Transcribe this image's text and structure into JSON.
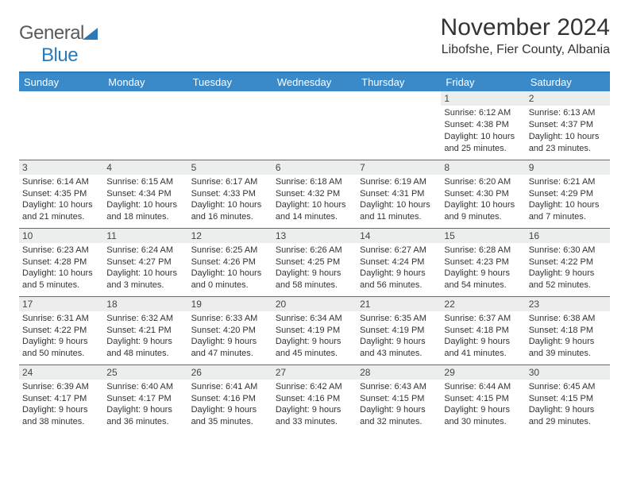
{
  "brand": {
    "name1": "General",
    "name2": "Blue"
  },
  "title": "November 2024",
  "location": "Libofshe, Fier County, Albania",
  "colors": {
    "header_bg": "#3a8ac9",
    "header_text": "#ffffff",
    "rule": "#2a7ab9",
    "daynum_bg": "#eceeee",
    "text": "#333333",
    "logo_blue": "#2a7ab9",
    "logo_gray": "#5a5a5a",
    "background": "#ffffff"
  },
  "weekdays": [
    "Sunday",
    "Monday",
    "Tuesday",
    "Wednesday",
    "Thursday",
    "Friday",
    "Saturday"
  ],
  "weeks": [
    [
      null,
      null,
      null,
      null,
      null,
      {
        "n": "1",
        "sunrise": "Sunrise: 6:12 AM",
        "sunset": "Sunset: 4:38 PM",
        "daylight": "Daylight: 10 hours and 25 minutes."
      },
      {
        "n": "2",
        "sunrise": "Sunrise: 6:13 AM",
        "sunset": "Sunset: 4:37 PM",
        "daylight": "Daylight: 10 hours and 23 minutes."
      }
    ],
    [
      {
        "n": "3",
        "sunrise": "Sunrise: 6:14 AM",
        "sunset": "Sunset: 4:35 PM",
        "daylight": "Daylight: 10 hours and 21 minutes."
      },
      {
        "n": "4",
        "sunrise": "Sunrise: 6:15 AM",
        "sunset": "Sunset: 4:34 PM",
        "daylight": "Daylight: 10 hours and 18 minutes."
      },
      {
        "n": "5",
        "sunrise": "Sunrise: 6:17 AM",
        "sunset": "Sunset: 4:33 PM",
        "daylight": "Daylight: 10 hours and 16 minutes."
      },
      {
        "n": "6",
        "sunrise": "Sunrise: 6:18 AM",
        "sunset": "Sunset: 4:32 PM",
        "daylight": "Daylight: 10 hours and 14 minutes."
      },
      {
        "n": "7",
        "sunrise": "Sunrise: 6:19 AM",
        "sunset": "Sunset: 4:31 PM",
        "daylight": "Daylight: 10 hours and 11 minutes."
      },
      {
        "n": "8",
        "sunrise": "Sunrise: 6:20 AM",
        "sunset": "Sunset: 4:30 PM",
        "daylight": "Daylight: 10 hours and 9 minutes."
      },
      {
        "n": "9",
        "sunrise": "Sunrise: 6:21 AM",
        "sunset": "Sunset: 4:29 PM",
        "daylight": "Daylight: 10 hours and 7 minutes."
      }
    ],
    [
      {
        "n": "10",
        "sunrise": "Sunrise: 6:23 AM",
        "sunset": "Sunset: 4:28 PM",
        "daylight": "Daylight: 10 hours and 5 minutes."
      },
      {
        "n": "11",
        "sunrise": "Sunrise: 6:24 AM",
        "sunset": "Sunset: 4:27 PM",
        "daylight": "Daylight: 10 hours and 3 minutes."
      },
      {
        "n": "12",
        "sunrise": "Sunrise: 6:25 AM",
        "sunset": "Sunset: 4:26 PM",
        "daylight": "Daylight: 10 hours and 0 minutes."
      },
      {
        "n": "13",
        "sunrise": "Sunrise: 6:26 AM",
        "sunset": "Sunset: 4:25 PM",
        "daylight": "Daylight: 9 hours and 58 minutes."
      },
      {
        "n": "14",
        "sunrise": "Sunrise: 6:27 AM",
        "sunset": "Sunset: 4:24 PM",
        "daylight": "Daylight: 9 hours and 56 minutes."
      },
      {
        "n": "15",
        "sunrise": "Sunrise: 6:28 AM",
        "sunset": "Sunset: 4:23 PM",
        "daylight": "Daylight: 9 hours and 54 minutes."
      },
      {
        "n": "16",
        "sunrise": "Sunrise: 6:30 AM",
        "sunset": "Sunset: 4:22 PM",
        "daylight": "Daylight: 9 hours and 52 minutes."
      }
    ],
    [
      {
        "n": "17",
        "sunrise": "Sunrise: 6:31 AM",
        "sunset": "Sunset: 4:22 PM",
        "daylight": "Daylight: 9 hours and 50 minutes."
      },
      {
        "n": "18",
        "sunrise": "Sunrise: 6:32 AM",
        "sunset": "Sunset: 4:21 PM",
        "daylight": "Daylight: 9 hours and 48 minutes."
      },
      {
        "n": "19",
        "sunrise": "Sunrise: 6:33 AM",
        "sunset": "Sunset: 4:20 PM",
        "daylight": "Daylight: 9 hours and 47 minutes."
      },
      {
        "n": "20",
        "sunrise": "Sunrise: 6:34 AM",
        "sunset": "Sunset: 4:19 PM",
        "daylight": "Daylight: 9 hours and 45 minutes."
      },
      {
        "n": "21",
        "sunrise": "Sunrise: 6:35 AM",
        "sunset": "Sunset: 4:19 PM",
        "daylight": "Daylight: 9 hours and 43 minutes."
      },
      {
        "n": "22",
        "sunrise": "Sunrise: 6:37 AM",
        "sunset": "Sunset: 4:18 PM",
        "daylight": "Daylight: 9 hours and 41 minutes."
      },
      {
        "n": "23",
        "sunrise": "Sunrise: 6:38 AM",
        "sunset": "Sunset: 4:18 PM",
        "daylight": "Daylight: 9 hours and 39 minutes."
      }
    ],
    [
      {
        "n": "24",
        "sunrise": "Sunrise: 6:39 AM",
        "sunset": "Sunset: 4:17 PM",
        "daylight": "Daylight: 9 hours and 38 minutes."
      },
      {
        "n": "25",
        "sunrise": "Sunrise: 6:40 AM",
        "sunset": "Sunset: 4:17 PM",
        "daylight": "Daylight: 9 hours and 36 minutes."
      },
      {
        "n": "26",
        "sunrise": "Sunrise: 6:41 AM",
        "sunset": "Sunset: 4:16 PM",
        "daylight": "Daylight: 9 hours and 35 minutes."
      },
      {
        "n": "27",
        "sunrise": "Sunrise: 6:42 AM",
        "sunset": "Sunset: 4:16 PM",
        "daylight": "Daylight: 9 hours and 33 minutes."
      },
      {
        "n": "28",
        "sunrise": "Sunrise: 6:43 AM",
        "sunset": "Sunset: 4:15 PM",
        "daylight": "Daylight: 9 hours and 32 minutes."
      },
      {
        "n": "29",
        "sunrise": "Sunrise: 6:44 AM",
        "sunset": "Sunset: 4:15 PM",
        "daylight": "Daylight: 9 hours and 30 minutes."
      },
      {
        "n": "30",
        "sunrise": "Sunrise: 6:45 AM",
        "sunset": "Sunset: 4:15 PM",
        "daylight": "Daylight: 9 hours and 29 minutes."
      }
    ]
  ]
}
